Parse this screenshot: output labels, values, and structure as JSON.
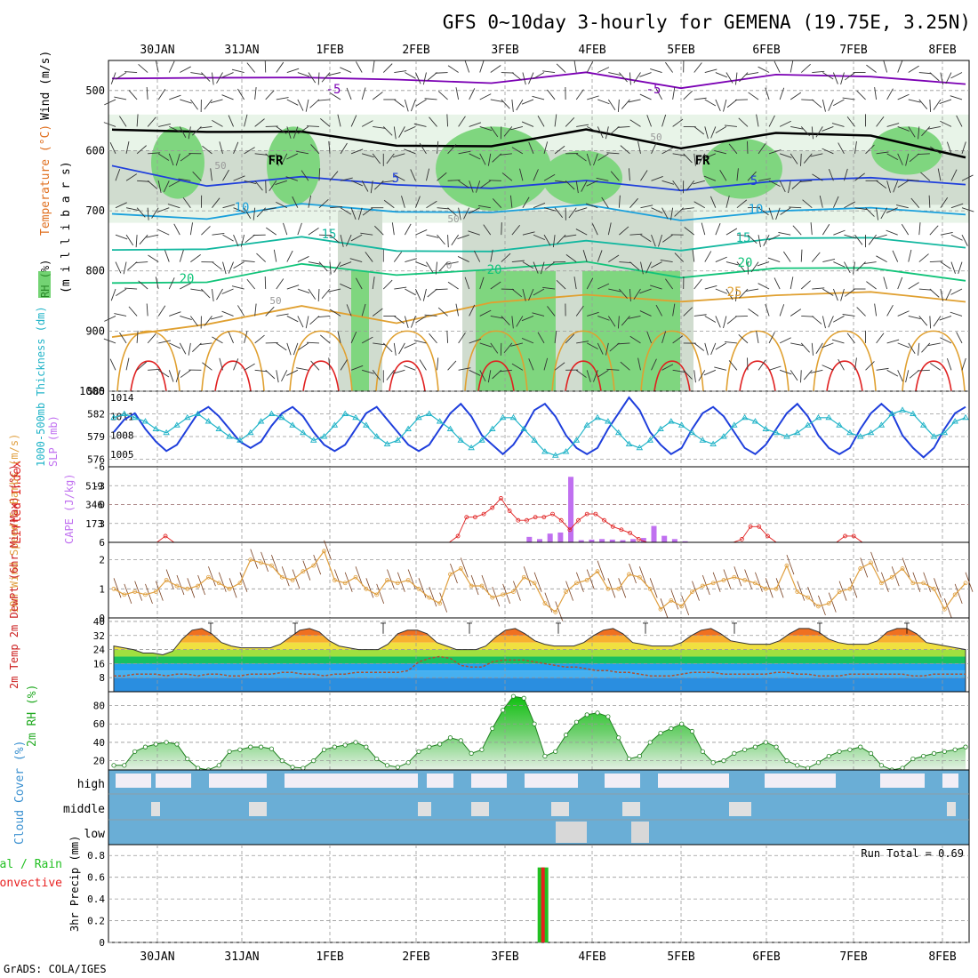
{
  "title": "GFS 0~10day 3-hourly for GEMENA (19.75E, 3.25N)",
  "footer": "GrADS: COLA/IGES",
  "dates": [
    "30JAN",
    "31JAN",
    "1FEB",
    "2FEB",
    "3FEB",
    "4FEB",
    "5FEB",
    "6FEB",
    "7FEB",
    "8FEB"
  ],
  "colors": {
    "purple": "#7b00b4",
    "black": "#000000",
    "blue": "#1f3fdc",
    "lightblue": "#1aa0dc",
    "teal": "#14b8a0",
    "green": "#12c47a",
    "orange": "#e0a030",
    "red": "#e02020",
    "cyan": "#22b4c8",
    "violet": "#c070f0",
    "wind10m": "#e0a040",
    "precipGreen": "#22c022",
    "precipRed": "#e82020",
    "cloud": "#6aaed6"
  },
  "chart_data": [
    {
      "type": "heatmap",
      "panel": "upper-air",
      "ylabel_parts": [
        "Wind (m/s)",
        "Temperature (°C)",
        "RH (%)"
      ],
      "ylabel_units": "(m i l l i b a r s)",
      "yticks": [
        500,
        600,
        700,
        800,
        900,
        1000
      ],
      "ylim": [
        1000,
        450
      ],
      "isotherm_labels": [
        {
          "value": -5,
          "label": "-5",
          "color": "purple"
        },
        {
          "value": 0,
          "label": "FR",
          "color": "black"
        },
        {
          "value": 5,
          "label": "5",
          "color": "blue"
        },
        {
          "value": 10,
          "label": "10",
          "color": "lightblue"
        },
        {
          "value": 15,
          "label": "15",
          "color": "teal"
        },
        {
          "value": 20,
          "label": "20",
          "color": "green"
        },
        {
          "value": 25,
          "label": "25",
          "color": "orange"
        }
      ],
      "rh_labels": [
        "50",
        "50",
        "50",
        "50",
        "0"
      ],
      "isotherm_levels_mb": {
        "-5": [
          480,
          470,
          490,
          475,
          485,
          480,
          485,
          478,
          482,
          478
        ],
        "0": [
          565,
          560,
          580,
          585,
          590,
          575,
          585,
          575,
          580,
          600
        ],
        "5": [
          625,
          650,
          655,
          650,
          660,
          660,
          655,
          655,
          650,
          645
        ],
        "10": [
          705,
          705,
          700,
          695,
          700,
          700,
          705,
          705,
          700,
          695
        ],
        "15": [
          765,
          755,
          755,
          760,
          765,
          760,
          755,
          750,
          750,
          750
        ],
        "20": [
          820,
          810,
          800,
          800,
          795,
          795,
          800,
          800,
          800,
          805
        ],
        "25": [
          910,
          880,
          870,
          880,
          850,
          850,
          840,
          845,
          840,
          840
        ]
      }
    },
    {
      "type": "line",
      "panel": "thickness-slp",
      "ylabel_left": "1000-500mb Thickness (dm)",
      "ylabel_right": "SLP (mb)",
      "yticks_left": [
        576,
        579,
        582,
        585
      ],
      "yticks_right": [
        1005,
        1008,
        1011,
        1014
      ],
      "ylim_left": [
        575,
        585
      ],
      "ylim_right": [
        1003,
        1015
      ],
      "series": [
        {
          "name": "SLP (mb)",
          "color": "blue",
          "values": [
            1008.5,
            1010.5,
            1011.5,
            1009,
            1007,
            1005.5,
            1006.5,
            1009,
            1011.5,
            1012.5,
            1011,
            1009,
            1007,
            1006,
            1007,
            1009.5,
            1011.5,
            1012.5,
            1011,
            1008.5,
            1006.5,
            1005.5,
            1006.5,
            1009,
            1011.5,
            1012.5,
            1010.5,
            1008.5,
            1006.5,
            1005.5,
            1006.5,
            1009,
            1011.5,
            1013,
            1011,
            1008,
            1006.5,
            1005,
            1006.5,
            1009,
            1012,
            1013,
            1011,
            1008,
            1006,
            1005,
            1006,
            1009,
            1011.5,
            1014,
            1012,
            1008.5,
            1006.5,
            1005,
            1006,
            1009,
            1011.5,
            1012.5,
            1011,
            1008.5,
            1006,
            1005,
            1006.5,
            1009,
            1011.5,
            1013,
            1011,
            1008,
            1006,
            1005,
            1006,
            1009,
            1011.5,
            1013,
            1011.5,
            1008,
            1006,
            1004.5,
            1006,
            1009,
            1011.5,
            1012.5
          ]
        },
        {
          "name": "1000-500mb Thickness (dm)",
          "color": "cyan",
          "values": [
            581.5,
            582,
            581.5,
            581,
            580,
            579.5,
            580.5,
            581.5,
            582,
            581,
            580,
            579,
            578.5,
            579.5,
            581,
            582,
            581.5,
            580.5,
            579.5,
            578.5,
            579,
            580.5,
            582,
            581.5,
            580.5,
            579,
            578,
            578.5,
            580,
            581.5,
            582,
            581,
            580,
            578.5,
            577.5,
            578.5,
            580,
            581.5,
            581.5,
            580,
            578.5,
            577,
            576.5,
            577,
            578.5,
            580.5,
            581.5,
            581,
            579.5,
            578,
            577.5,
            578.5,
            580,
            581,
            580.5,
            579.5,
            578.5,
            578,
            579,
            580.5,
            581.5,
            581,
            580,
            579.5,
            579,
            579.5,
            580.5,
            581.5,
            581.5,
            580.5,
            579.5,
            579,
            579.5,
            580.5,
            582,
            582.5,
            582,
            580.5,
            579,
            579.5,
            581,
            581.5
          ]
        }
      ]
    },
    {
      "type": "bar",
      "panel": "lifted-index-cape",
      "ylabel_left": "Lifted Index",
      "ylabel_right": "CAPE (J/kg)",
      "yticks_left": [
        -6,
        -3,
        0,
        3,
        6
      ],
      "yticks_right": [
        173,
        346,
        519
      ],
      "ylim_left": [
        6,
        -6
      ],
      "ylim_right": [
        0,
        692
      ],
      "series": [
        {
          "name": "Lifted Index",
          "color": "red",
          "values": [
            6,
            6,
            6,
            6,
            6,
            6,
            5,
            6,
            6,
            6,
            6,
            6,
            6,
            6,
            6,
            6,
            6,
            6,
            6,
            6,
            6,
            6,
            6,
            6,
            6,
            6,
            6,
            6,
            6,
            6,
            6,
            6,
            6,
            6,
            6,
            6,
            6,
            6,
            6,
            6,
            5,
            2,
            2,
            1.5,
            0.5,
            -1,
            1,
            2.5,
            2.5,
            2,
            2,
            1.5,
            2.5,
            4,
            2.5,
            1.5,
            1.5,
            2.5,
            3.5,
            4,
            4.5,
            5.5,
            6,
            6,
            6,
            6,
            6,
            6,
            6,
            6,
            6,
            6,
            6,
            5.5,
            3.5,
            3.5,
            5,
            6,
            6,
            6,
            6,
            6,
            6,
            6,
            6,
            5,
            5,
            6,
            6,
            6,
            6,
            6,
            6,
            6,
            6,
            6,
            6,
            6,
            6,
            6
          ]
        },
        {
          "name": "CAPE (J/kg)",
          "color": "violet",
          "values": [
            0,
            0,
            0,
            0,
            0,
            0,
            0,
            0,
            0,
            0,
            0,
            0,
            0,
            0,
            0,
            0,
            0,
            0,
            0,
            0,
            0,
            0,
            0,
            0,
            0,
            0,
            0,
            0,
            0,
            0,
            0,
            0,
            0,
            0,
            0,
            0,
            0,
            0,
            0,
            0,
            50,
            30,
            80,
            90,
            600,
            20,
            25,
            30,
            25,
            20,
            30,
            40,
            150,
            60,
            30,
            10,
            0,
            0,
            0,
            0,
            0,
            0,
            0,
            0,
            0,
            0,
            0,
            0,
            0,
            0,
            0,
            0,
            0,
            0,
            0,
            0,
            0,
            0,
            0,
            0,
            0,
            0,
            0
          ]
        }
      ]
    },
    {
      "type": "line",
      "panel": "wind10m",
      "ylabel": "10m Wind Speed & Barbs (m/s)",
      "yticks": [
        0,
        1,
        2
      ],
      "ylim": [
        0,
        2.6
      ],
      "series": [
        {
          "name": "10m Wind Speed",
          "color": "wind10m",
          "values": [
            1.0,
            0.8,
            0.9,
            0.8,
            0.9,
            1.3,
            1.1,
            1.0,
            1.1,
            1.4,
            1.2,
            1.0,
            1.2,
            2.0,
            1.9,
            1.8,
            1.4,
            1.3,
            1.6,
            1.8,
            2.3,
            1.3,
            1.2,
            1.4,
            1.0,
            0.8,
            1.3,
            1.2,
            1.3,
            1.0,
            0.7,
            0.5,
            1.5,
            1.7,
            1.1,
            1.1,
            0.7,
            0.8,
            0.9,
            1.4,
            1.2,
            0.5,
            0.2,
            0.9,
            1.2,
            1.3,
            1.6,
            1.0,
            1.0,
            1.5,
            1.4,
            1.0,
            0.3,
            0.6,
            0.4,
            0.9,
            1.1,
            1.2,
            1.3,
            1.4,
            1.3,
            1.2,
            1.0,
            1.0,
            1.8,
            0.9,
            0.7,
            0.4,
            0.5,
            0.9,
            1.0,
            1.7,
            1.9,
            1.2,
            1.4,
            1.7,
            1.2,
            1.2,
            1.0,
            0.3,
            0.8,
            1.2
          ]
        }
      ]
    },
    {
      "type": "area",
      "panel": "temperature",
      "ylabel": "2m Temp 2m DewPt (6hr Min/Max) (°C)",
      "yticks": [
        8,
        16,
        24,
        32,
        40
      ],
      "ylim": [
        0,
        42
      ],
      "series": [
        {
          "name": "2m Temp",
          "values": [
            26,
            25,
            24,
            22,
            22,
            21,
            23,
            30,
            35,
            36,
            33,
            28,
            26,
            25,
            25,
            25,
            25,
            27,
            31,
            35,
            36,
            34,
            29,
            26,
            25,
            24,
            24,
            24,
            27,
            33,
            35,
            35,
            33,
            28,
            26,
            24,
            24,
            24,
            26,
            31,
            35,
            36,
            33,
            29,
            27,
            26,
            26,
            26,
            28,
            32,
            35,
            36,
            33,
            28,
            27,
            26,
            26,
            26,
            28,
            32,
            35,
            36,
            33,
            29,
            28,
            27,
            27,
            27,
            29,
            33,
            36,
            36,
            34,
            30,
            28,
            27,
            27,
            27,
            29,
            34,
            36,
            36,
            33,
            28,
            27,
            26,
            25,
            24
          ]
        },
        {
          "name": "2m DewPt",
          "values": [
            9,
            9,
            10,
            10,
            10,
            9,
            10,
            10,
            9,
            10,
            10,
            9,
            9,
            10,
            10,
            10,
            11,
            11,
            10,
            10,
            9,
            10,
            10,
            11,
            11,
            11,
            11,
            11,
            12,
            17,
            19,
            20,
            19,
            15,
            14,
            14,
            17,
            18,
            18,
            18,
            17,
            16,
            15,
            14,
            14,
            13,
            12,
            12,
            11,
            11,
            10,
            9,
            9,
            9,
            10,
            11,
            11,
            11,
            10,
            10,
            10,
            10,
            10,
            11,
            11,
            10,
            10,
            9,
            9,
            9,
            10,
            10,
            10,
            10,
            10,
            10,
            9,
            9,
            10,
            10,
            10,
            10
          ]
        }
      ]
    },
    {
      "type": "area",
      "panel": "rh",
      "ylabel": "2m RH (%)",
      "yticks": [
        20,
        40,
        60,
        80
      ],
      "ylim": [
        10,
        95
      ],
      "series": [
        {
          "name": "2m RH",
          "values": [
            15,
            15,
            30,
            35,
            38,
            40,
            38,
            22,
            12,
            10,
            15,
            30,
            32,
            35,
            35,
            33,
            20,
            13,
            12,
            20,
            32,
            35,
            37,
            40,
            35,
            22,
            15,
            13,
            18,
            30,
            35,
            38,
            45,
            42,
            28,
            32,
            55,
            75,
            90,
            88,
            60,
            25,
            30,
            48,
            62,
            70,
            72,
            68,
            45,
            22,
            25,
            40,
            50,
            55,
            60,
            52,
            30,
            18,
            20,
            28,
            32,
            35,
            40,
            35,
            20,
            15,
            12,
            18,
            25,
            30,
            32,
            35,
            28,
            15,
            10,
            12,
            22,
            25,
            28,
            30,
            32,
            35
          ]
        }
      ]
    },
    {
      "type": "bar",
      "panel": "cloud-cover",
      "ylabel": "Cloud Cover (%)",
      "layers": [
        "high",
        "middle",
        "low"
      ]
    },
    {
      "type": "bar",
      "panel": "precip",
      "ylabel": "3hr Precip (mm)",
      "legend": [
        "Total / Rain",
        "Convective"
      ],
      "yticks": [
        0,
        0.2,
        0.4,
        0.6,
        0.8
      ],
      "ylim": [
        0,
        0.9
      ],
      "annotation": "Run Total = 0.69",
      "bars": [
        {
          "date_index": 4,
          "offset": 3.5,
          "total": 0.69,
          "convective": 0.69
        }
      ]
    }
  ]
}
